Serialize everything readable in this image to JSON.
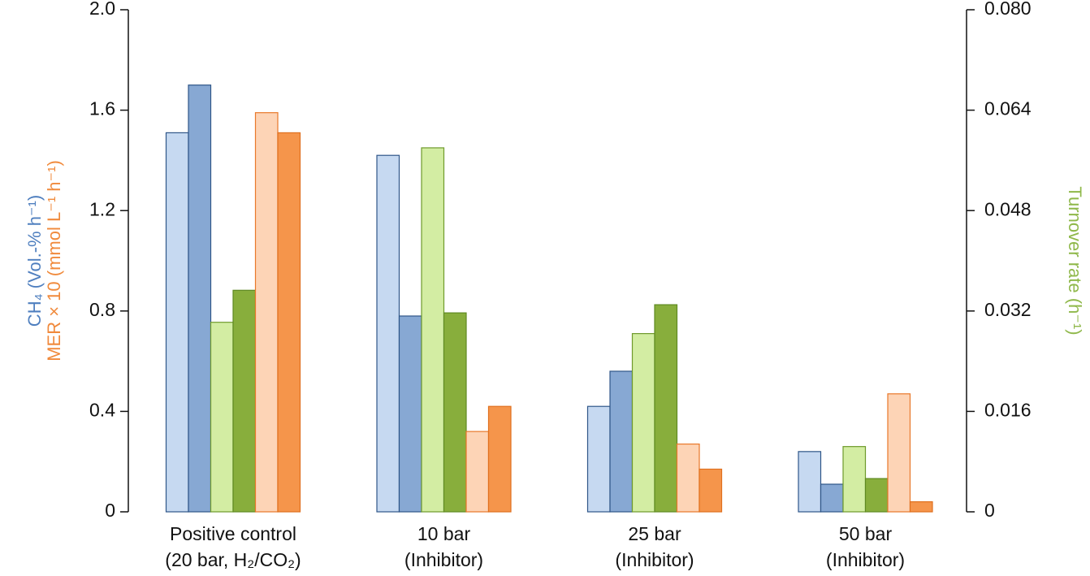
{
  "chart_data": {
    "type": "bar",
    "ylabel": [
      {
        "text": "CH₄ (Vol.-% h⁻¹)",
        "color": "#4f7fbf"
      },
      {
        "text": "MER × 10 (mmol L⁻¹ h⁻¹)",
        "color": "#f08a3c"
      }
    ],
    "y2label": {
      "text": "Turnover rate (h⁻¹)",
      "color": "#8fb84a"
    },
    "categories": [
      [
        "Positive control",
        "(20 bar, H₂/CO₂)"
      ],
      [
        "10 bar",
        "(Inhibitor)"
      ],
      [
        "25 bar",
        "(Inhibitor)"
      ],
      [
        "50 bar",
        "(Inhibitor)"
      ]
    ],
    "series": [
      {
        "color": "#c6d9f1",
        "stroke": "#2f5688",
        "values": [
          1.51,
          1.42,
          0.42,
          0.24
        ]
      },
      {
        "color": "#87a8d3",
        "stroke": "#2f5688",
        "values": [
          1.7,
          0.78,
          0.56,
          0.11
        ]
      },
      {
        "color": "#d3edA3",
        "stroke": "#6f9a2c",
        "values": [
          0.0302,
          0.058,
          0.0284,
          0.0104
        ],
        "axis": "y2"
      },
      {
        "color": "#88ae3c",
        "stroke": "#5f8a22",
        "values": [
          0.0353,
          0.0317,
          0.033,
          0.0053
        ],
        "axis": "y2"
      },
      {
        "color": "#fdd4b6",
        "stroke": "#e8782a",
        "values": [
          1.59,
          0.32,
          0.27,
          0.47
        ]
      },
      {
        "color": "#f5954b",
        "stroke": "#e0701e",
        "values": [
          1.51,
          0.42,
          0.17,
          0.04
        ]
      }
    ],
    "ylim": [
      0,
      2.0
    ],
    "yticks": [
      0,
      0.4,
      0.8,
      1.2,
      1.6,
      {
        "value": 2.0,
        "label": "2.0"
      }
    ],
    "y2lim": [
      0,
      0.08
    ],
    "y2ticks": [
      0,
      0.016,
      0.032,
      0.048,
      0.064,
      {
        "value": 0.08,
        "label": "0.080"
      }
    ]
  }
}
